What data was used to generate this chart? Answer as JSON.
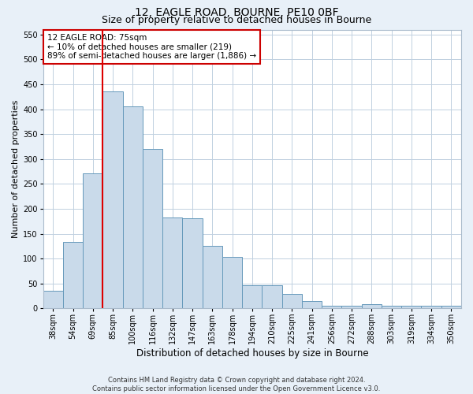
{
  "title": "12, EAGLE ROAD, BOURNE, PE10 0BF",
  "subtitle": "Size of property relative to detached houses in Bourne",
  "xlabel": "Distribution of detached houses by size in Bourne",
  "ylabel": "Number of detached properties",
  "footer_line1": "Contains HM Land Registry data © Crown copyright and database right 2024.",
  "footer_line2": "Contains public sector information licensed under the Open Government Licence v3.0.",
  "bar_labels": [
    "38sqm",
    "54sqm",
    "69sqm",
    "85sqm",
    "100sqm",
    "116sqm",
    "132sqm",
    "147sqm",
    "163sqm",
    "178sqm",
    "194sqm",
    "210sqm",
    "225sqm",
    "241sqm",
    "256sqm",
    "272sqm",
    "288sqm",
    "303sqm",
    "319sqm",
    "334sqm",
    "350sqm"
  ],
  "bar_values": [
    35,
    133,
    272,
    435,
    405,
    320,
    182,
    181,
    126,
    103,
    46,
    46,
    29,
    15,
    6,
    6,
    9,
    5,
    5,
    5,
    5
  ],
  "bar_color": "#c9daea",
  "bar_edge_color": "#6699bb",
  "red_line_x": 2.5,
  "red_line_color": "#dd0000",
  "annotation_text": "12 EAGLE ROAD: 75sqm\n← 10% of detached houses are smaller (219)\n89% of semi-detached houses are larger (1,886) →",
  "annotation_box_facecolor": "#ffffff",
  "annotation_box_edgecolor": "#cc0000",
  "ylim": [
    0,
    560
  ],
  "yticks": [
    0,
    50,
    100,
    150,
    200,
    250,
    300,
    350,
    400,
    450,
    500,
    550
  ],
  "grid_color": "#c0d0e0",
  "background_color": "#e8f0f8",
  "plot_bg_color": "#ffffff",
  "title_fontsize": 10,
  "subtitle_fontsize": 9,
  "ylabel_fontsize": 8,
  "xlabel_fontsize": 8.5,
  "tick_fontsize": 7,
  "annotation_fontsize": 7.5,
  "footer_fontsize": 6
}
